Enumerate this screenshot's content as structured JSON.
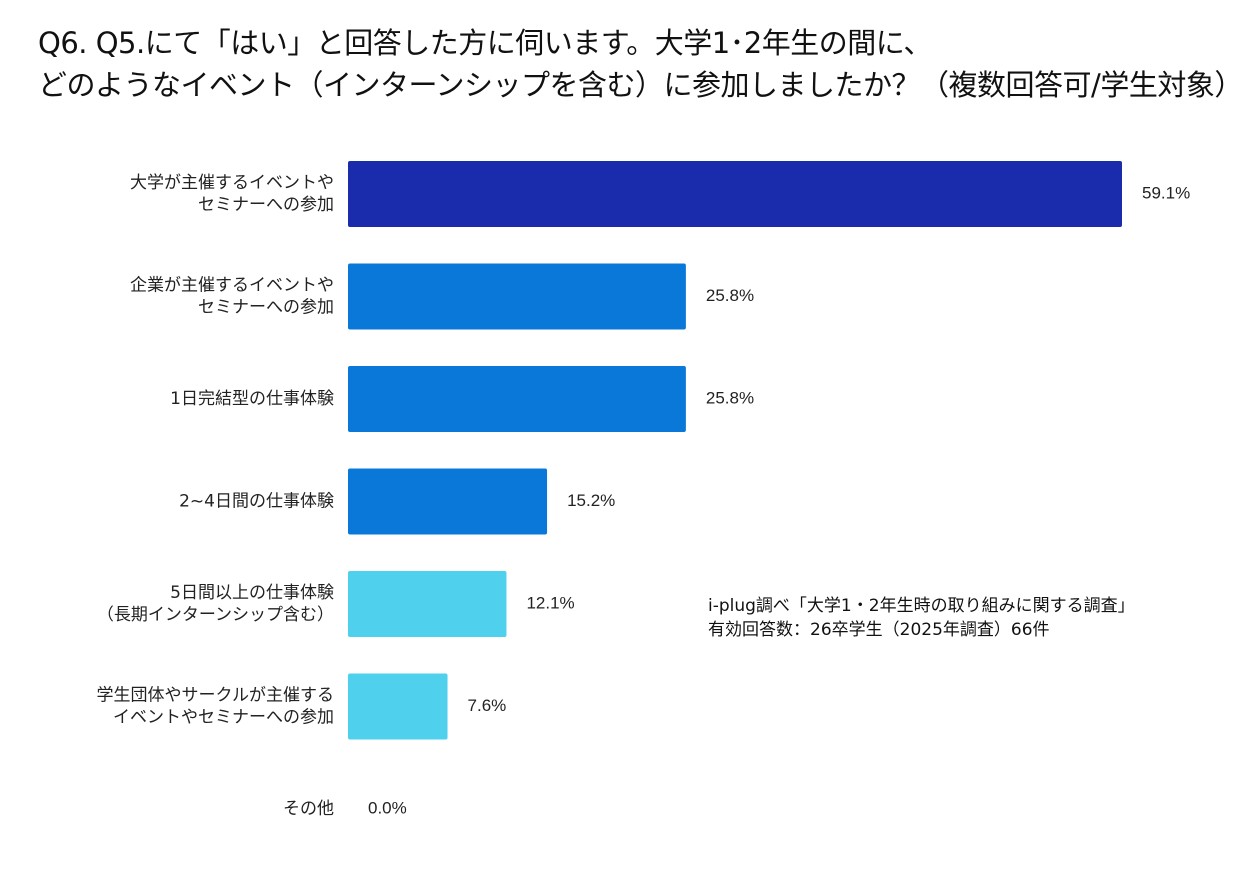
{
  "title": {
    "line1": "Q6. Q5.にて「はい」と回答した方に伺います。大学1･2年生の間に、",
    "line2": "どのようなイベント（インターンシップを含む）に参加しましたか？（複数回答可/学生対象）"
  },
  "source_note": {
    "line1": "i-plug調べ「大学1・2年生時の取り組みに関する調査」",
    "line2": "有効回答数：26卒学生（2025年調査）66件"
  },
  "chart_data": {
    "type": "bar",
    "orientation": "horizontal",
    "title": "",
    "xlabel": "",
    "ylabel": "",
    "xlim": [
      0,
      59.1
    ],
    "grid": false,
    "legend": "none",
    "unit": "%",
    "categories": [
      [
        "大学が主催するイベントや",
        "セミナーへの参加"
      ],
      [
        "企業が主催するイベントや",
        "セミナーへの参加"
      ],
      [
        "1日完結型の仕事体験"
      ],
      [
        "2~4日間の仕事体験"
      ],
      [
        "5日間以上の仕事体験",
        "（長期インターンシップ含む）"
      ],
      [
        "学生団体やサークルが主催する",
        "イベントやセミナーへの参加"
      ],
      [
        "その他"
      ]
    ],
    "values": [
      59.1,
      25.8,
      25.8,
      15.2,
      12.1,
      7.6,
      0.0
    ],
    "value_labels": [
      "59.1%",
      "25.8%",
      "25.8%",
      "15.2%",
      "12.1%",
      "7.6%",
      "0.0%"
    ],
    "colors": [
      "#1a2bab",
      "#0a78d8",
      "#0a78d8",
      "#0a78d8",
      "#4fd1ee",
      "#4fd1ee",
      "#4fd1ee"
    ]
  }
}
